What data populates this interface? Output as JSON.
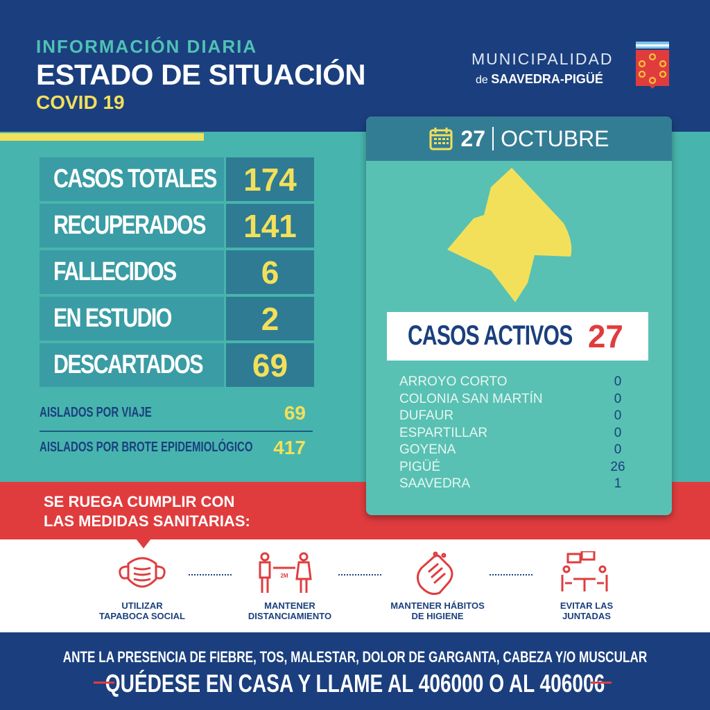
{
  "header": {
    "line1": "INFORMACIÓN DIARIA",
    "line2": "ESTADO DE SITUACIÓN",
    "line3": "COVID 19"
  },
  "logo": {
    "line1": "MUNICIPALIDAD",
    "prefix": "de",
    "name": "SAAVEDRA-PIGÜÉ"
  },
  "stats": [
    {
      "label": "CASOS TOTALES",
      "value": "174"
    },
    {
      "label": "RECUPERADOS",
      "value": "141"
    },
    {
      "label": "FALLECIDOS",
      "value": "6"
    },
    {
      "label": "EN ESTUDIO",
      "value": "2"
    },
    {
      "label": "DESCARTADOS",
      "value": "69"
    }
  ],
  "aislados": [
    {
      "label": "AISLADOS POR VIAJE",
      "value": "69"
    },
    {
      "label": "AISLADOS POR  BROTE EPIDEMIOLÓGICO",
      "value": "417"
    }
  ],
  "card": {
    "day": "27",
    "month": "OCTUBRE",
    "activos_label": "CASOS ACTIVOS",
    "activos_value": "27",
    "localidades": [
      {
        "name": "ARROYO CORTO",
        "count": "0"
      },
      {
        "name": "COLONIA SAN MARTÍN",
        "count": "0"
      },
      {
        "name": "DUFAUR",
        "count": "0"
      },
      {
        "name": "ESPARTILLAR",
        "count": "0"
      },
      {
        "name": "GOYENA",
        "count": "0"
      },
      {
        "name": "PIGÜÉ",
        "count": "26"
      },
      {
        "name": "SAAVEDRA",
        "count": "1"
      }
    ]
  },
  "ruego": {
    "line1": "SE RUEGA CUMPLIR CON",
    "line2": "LAS MEDIDAS SANITARIAS:"
  },
  "medidas": [
    {
      "icon": "face-mask-icon",
      "line1": "UTILIZAR",
      "line2": "TAPABOCA SOCIAL",
      "badge": ""
    },
    {
      "icon": "distancing-icon",
      "line1": "MANTENER",
      "line2": "DISTANCIAMIENTO",
      "badge": "2M"
    },
    {
      "icon": "hand-washing-icon",
      "line1": "MANTENER HÁBITOS",
      "line2": "DE HIGIENE",
      "badge": ""
    },
    {
      "icon": "gathering-icon",
      "line1": "EVITAR LAS",
      "line2": "JUNTADAS",
      "badge": ""
    }
  ],
  "footer": {
    "line1": "ANTE LA PRESENCIA DE FIEBRE, TOS, MALESTAR, DOLOR DE GARGANTA, CABEZA Y/O MUSCULAR",
    "line2": "QUÉDESE EN CASA Y LLAME AL 406000 O AL 406006"
  },
  "colors": {
    "navy": "#1b3f7e",
    "teal": "#47b5ad",
    "yellow": "#f3e05a",
    "red": "#e03c3e"
  }
}
